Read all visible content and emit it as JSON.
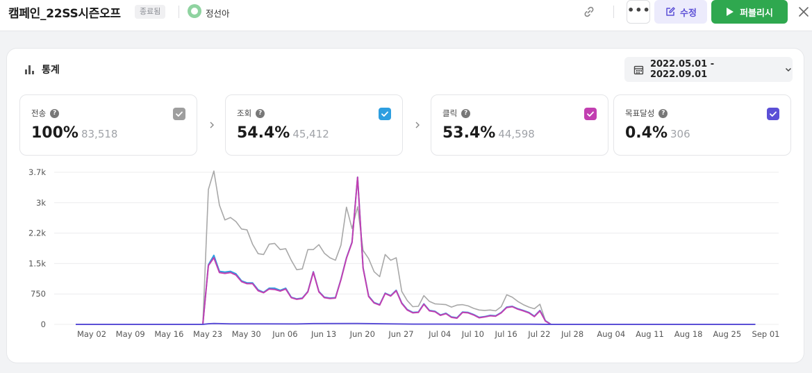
{
  "header": {
    "title": "캠페인_22SS시즌오프",
    "status": "종료됨",
    "owner": "정선아",
    "edit_label": "수정",
    "publish_label": "퍼블리시"
  },
  "stats": {
    "title": "통계",
    "date_range": "2022.05.01 - 2022.09.01"
  },
  "metrics": [
    {
      "label": "전송",
      "percent": "100%",
      "count": "83,518",
      "color": "#9e9e9e"
    },
    {
      "label": "조회",
      "percent": "54.4%",
      "count": "45,412",
      "color": "#2d9ee0"
    },
    {
      "label": "클릭",
      "percent": "53.4%",
      "count": "44,598",
      "color": "#c23fb1"
    },
    {
      "label": "목표달성",
      "percent": "0.4%",
      "count": "306",
      "color": "#5b4fd6"
    }
  ],
  "chart_data": {
    "type": "line",
    "y_ticks": [
      "3.7k",
      "3k",
      "2.2k",
      "1.5k",
      "750",
      "0"
    ],
    "ylim": [
      0,
      3700
    ],
    "x_ticks": [
      "May 02",
      "May 09",
      "May 16",
      "May 23",
      "May 30",
      "Jun 06",
      "Jun 13",
      "Jun 20",
      "Jun 27",
      "Jul 04",
      "Jul 10",
      "Jul 16",
      "Jul 22",
      "Jul 28",
      "Aug 04",
      "Aug 11",
      "Aug 18",
      "Aug 25",
      "Sep 01"
    ],
    "start_date": "2022-05-01",
    "end_date": "2022-09-01",
    "grid": true,
    "series": [
      {
        "metric": "전송",
        "color": "#a8a8a8",
        "points": [
          [
            "2022-05-01",
            0
          ],
          [
            "2022-05-24",
            0
          ],
          [
            "2022-05-25",
            3280
          ],
          [
            "2022-05-26",
            3730
          ],
          [
            "2022-05-27",
            2900
          ],
          [
            "2022-05-28",
            2540
          ],
          [
            "2022-05-29",
            2600
          ],
          [
            "2022-05-30",
            2500
          ],
          [
            "2022-05-31",
            2320
          ],
          [
            "2022-06-01",
            2300
          ],
          [
            "2022-06-02",
            1950
          ],
          [
            "2022-06-03",
            1720
          ],
          [
            "2022-06-04",
            1700
          ],
          [
            "2022-06-05",
            1950
          ],
          [
            "2022-06-06",
            1970
          ],
          [
            "2022-06-07",
            1820
          ],
          [
            "2022-06-08",
            1840
          ],
          [
            "2022-06-09",
            1560
          ],
          [
            "2022-06-10",
            1330
          ],
          [
            "2022-06-11",
            1350
          ],
          [
            "2022-06-12",
            1820
          ],
          [
            "2022-06-13",
            1820
          ],
          [
            "2022-06-14",
            1940
          ],
          [
            "2022-06-15",
            1730
          ],
          [
            "2022-06-16",
            1620
          ],
          [
            "2022-06-17",
            1560
          ],
          [
            "2022-06-18",
            1930
          ],
          [
            "2022-06-19",
            2850
          ],
          [
            "2022-06-20",
            2330
          ],
          [
            "2022-06-21",
            2860
          ],
          [
            "2022-06-22",
            1800
          ],
          [
            "2022-06-23",
            1600
          ],
          [
            "2022-06-24",
            1280
          ],
          [
            "2022-06-25",
            1160
          ],
          [
            "2022-06-26",
            1700
          ],
          [
            "2022-06-27",
            1560
          ],
          [
            "2022-06-28",
            1620
          ],
          [
            "2022-06-29",
            800
          ],
          [
            "2022-06-30",
            580
          ],
          [
            "2022-07-01",
            430
          ],
          [
            "2022-07-02",
            440
          ],
          [
            "2022-07-03",
            700
          ],
          [
            "2022-07-04",
            560
          ],
          [
            "2022-07-05",
            500
          ],
          [
            "2022-07-06",
            490
          ],
          [
            "2022-07-07",
            480
          ],
          [
            "2022-07-08",
            420
          ],
          [
            "2022-07-09",
            470
          ],
          [
            "2022-07-10",
            480
          ],
          [
            "2022-07-11",
            450
          ],
          [
            "2022-07-12",
            390
          ],
          [
            "2022-07-13",
            350
          ],
          [
            "2022-07-14",
            340
          ],
          [
            "2022-07-15",
            350
          ],
          [
            "2022-07-16",
            330
          ],
          [
            "2022-07-17",
            430
          ],
          [
            "2022-07-18",
            720
          ],
          [
            "2022-07-19",
            660
          ],
          [
            "2022-07-20",
            560
          ],
          [
            "2022-07-21",
            480
          ],
          [
            "2022-07-22",
            420
          ],
          [
            "2022-07-23",
            380
          ],
          [
            "2022-07-24",
            490
          ],
          [
            "2022-07-25",
            90
          ],
          [
            "2022-07-26",
            0
          ],
          [
            "2022-09-01",
            0
          ]
        ]
      },
      {
        "metric": "조회",
        "color": "#2d9ee0",
        "points": [
          [
            "2022-05-01",
            0
          ],
          [
            "2022-05-24",
            0
          ],
          [
            "2022-05-25",
            1450
          ],
          [
            "2022-05-26",
            1680
          ],
          [
            "2022-05-27",
            1290
          ],
          [
            "2022-05-28",
            1270
          ],
          [
            "2022-05-29",
            1290
          ],
          [
            "2022-05-30",
            1230
          ],
          [
            "2022-05-31",
            1060
          ],
          [
            "2022-06-01",
            1010
          ],
          [
            "2022-06-02",
            1010
          ],
          [
            "2022-06-03",
            840
          ],
          [
            "2022-06-04",
            780
          ],
          [
            "2022-06-05",
            880
          ],
          [
            "2022-06-06",
            880
          ],
          [
            "2022-06-07",
            830
          ],
          [
            "2022-06-08",
            880
          ],
          [
            "2022-06-09",
            660
          ],
          [
            "2022-06-10",
            620
          ],
          [
            "2022-06-11",
            640
          ],
          [
            "2022-06-12",
            800
          ],
          [
            "2022-06-13",
            1280
          ],
          [
            "2022-06-14",
            800
          ],
          [
            "2022-06-15",
            660
          ],
          [
            "2022-06-16",
            640
          ],
          [
            "2022-06-17",
            650
          ],
          [
            "2022-06-18",
            1100
          ],
          [
            "2022-06-19",
            1620
          ],
          [
            "2022-06-20",
            2000
          ],
          [
            "2022-06-21",
            3580
          ],
          [
            "2022-06-22",
            1380
          ],
          [
            "2022-06-23",
            690
          ],
          [
            "2022-06-24",
            530
          ],
          [
            "2022-06-25",
            480
          ],
          [
            "2022-06-26",
            760
          ],
          [
            "2022-06-27",
            700
          ],
          [
            "2022-06-28",
            830
          ],
          [
            "2022-06-29",
            520
          ],
          [
            "2022-06-30",
            360
          ],
          [
            "2022-07-01",
            290
          ],
          [
            "2022-07-02",
            300
          ],
          [
            "2022-07-03",
            500
          ],
          [
            "2022-07-04",
            340
          ],
          [
            "2022-07-05",
            320
          ],
          [
            "2022-07-06",
            230
          ],
          [
            "2022-07-07",
            270
          ],
          [
            "2022-07-08",
            180
          ],
          [
            "2022-07-09",
            160
          ],
          [
            "2022-07-10",
            300
          ],
          [
            "2022-07-11",
            290
          ],
          [
            "2022-07-12",
            240
          ],
          [
            "2022-07-13",
            170
          ],
          [
            "2022-07-14",
            190
          ],
          [
            "2022-07-15",
            220
          ],
          [
            "2022-07-16",
            210
          ],
          [
            "2022-07-17",
            290
          ],
          [
            "2022-07-18",
            420
          ],
          [
            "2022-07-19",
            440
          ],
          [
            "2022-07-20",
            380
          ],
          [
            "2022-07-21",
            340
          ],
          [
            "2022-07-22",
            290
          ],
          [
            "2022-07-23",
            200
          ],
          [
            "2022-07-24",
            340
          ],
          [
            "2022-07-25",
            90
          ],
          [
            "2022-07-26",
            0
          ],
          [
            "2022-09-01",
            0
          ]
        ]
      },
      {
        "metric": "클릭",
        "color": "#c23fb1",
        "points": [
          [
            "2022-05-01",
            0
          ],
          [
            "2022-05-24",
            0
          ],
          [
            "2022-05-25",
            1430
          ],
          [
            "2022-05-26",
            1620
          ],
          [
            "2022-05-27",
            1260
          ],
          [
            "2022-05-28",
            1240
          ],
          [
            "2022-05-29",
            1260
          ],
          [
            "2022-05-30",
            1200
          ],
          [
            "2022-05-31",
            1040
          ],
          [
            "2022-06-01",
            990
          ],
          [
            "2022-06-02",
            990
          ],
          [
            "2022-06-03",
            820
          ],
          [
            "2022-06-04",
            770
          ],
          [
            "2022-06-05",
            860
          ],
          [
            "2022-06-06",
            850
          ],
          [
            "2022-06-07",
            810
          ],
          [
            "2022-06-08",
            860
          ],
          [
            "2022-06-09",
            650
          ],
          [
            "2022-06-10",
            610
          ],
          [
            "2022-06-11",
            630
          ],
          [
            "2022-06-12",
            790
          ],
          [
            "2022-06-13",
            1270
          ],
          [
            "2022-06-14",
            790
          ],
          [
            "2022-06-15",
            650
          ],
          [
            "2022-06-16",
            630
          ],
          [
            "2022-06-17",
            640
          ],
          [
            "2022-06-18",
            1090
          ],
          [
            "2022-06-19",
            1610
          ],
          [
            "2022-06-20",
            1990
          ],
          [
            "2022-06-21",
            3580
          ],
          [
            "2022-06-22",
            1370
          ],
          [
            "2022-06-23",
            680
          ],
          [
            "2022-06-24",
            520
          ],
          [
            "2022-06-25",
            470
          ],
          [
            "2022-06-26",
            750
          ],
          [
            "2022-06-27",
            690
          ],
          [
            "2022-06-28",
            820
          ],
          [
            "2022-06-29",
            510
          ],
          [
            "2022-06-30",
            350
          ],
          [
            "2022-07-01",
            280
          ],
          [
            "2022-07-02",
            290
          ],
          [
            "2022-07-03",
            490
          ],
          [
            "2022-07-04",
            330
          ],
          [
            "2022-07-05",
            310
          ],
          [
            "2022-07-06",
            220
          ],
          [
            "2022-07-07",
            260
          ],
          [
            "2022-07-08",
            170
          ],
          [
            "2022-07-09",
            150
          ],
          [
            "2022-07-10",
            290
          ],
          [
            "2022-07-11",
            280
          ],
          [
            "2022-07-12",
            230
          ],
          [
            "2022-07-13",
            160
          ],
          [
            "2022-07-14",
            180
          ],
          [
            "2022-07-15",
            210
          ],
          [
            "2022-07-16",
            200
          ],
          [
            "2022-07-17",
            280
          ],
          [
            "2022-07-18",
            410
          ],
          [
            "2022-07-19",
            430
          ],
          [
            "2022-07-20",
            370
          ],
          [
            "2022-07-21",
            330
          ],
          [
            "2022-07-22",
            280
          ],
          [
            "2022-07-23",
            190
          ],
          [
            "2022-07-24",
            330
          ],
          [
            "2022-07-25",
            80
          ],
          [
            "2022-07-26",
            0
          ],
          [
            "2022-09-01",
            0
          ]
        ]
      },
      {
        "metric": "목표달성",
        "color": "#5b4fd6",
        "points": [
          [
            "2022-05-01",
            0
          ],
          [
            "2022-05-24",
            0
          ],
          [
            "2022-05-25",
            15
          ],
          [
            "2022-05-26",
            20
          ],
          [
            "2022-05-29",
            12
          ],
          [
            "2022-06-03",
            14
          ],
          [
            "2022-06-10",
            10
          ],
          [
            "2022-06-13",
            18
          ],
          [
            "2022-06-21",
            20
          ],
          [
            "2022-07-01",
            6
          ],
          [
            "2022-07-20",
            5
          ],
          [
            "2022-07-26",
            0
          ],
          [
            "2022-09-01",
            0
          ]
        ]
      }
    ]
  }
}
